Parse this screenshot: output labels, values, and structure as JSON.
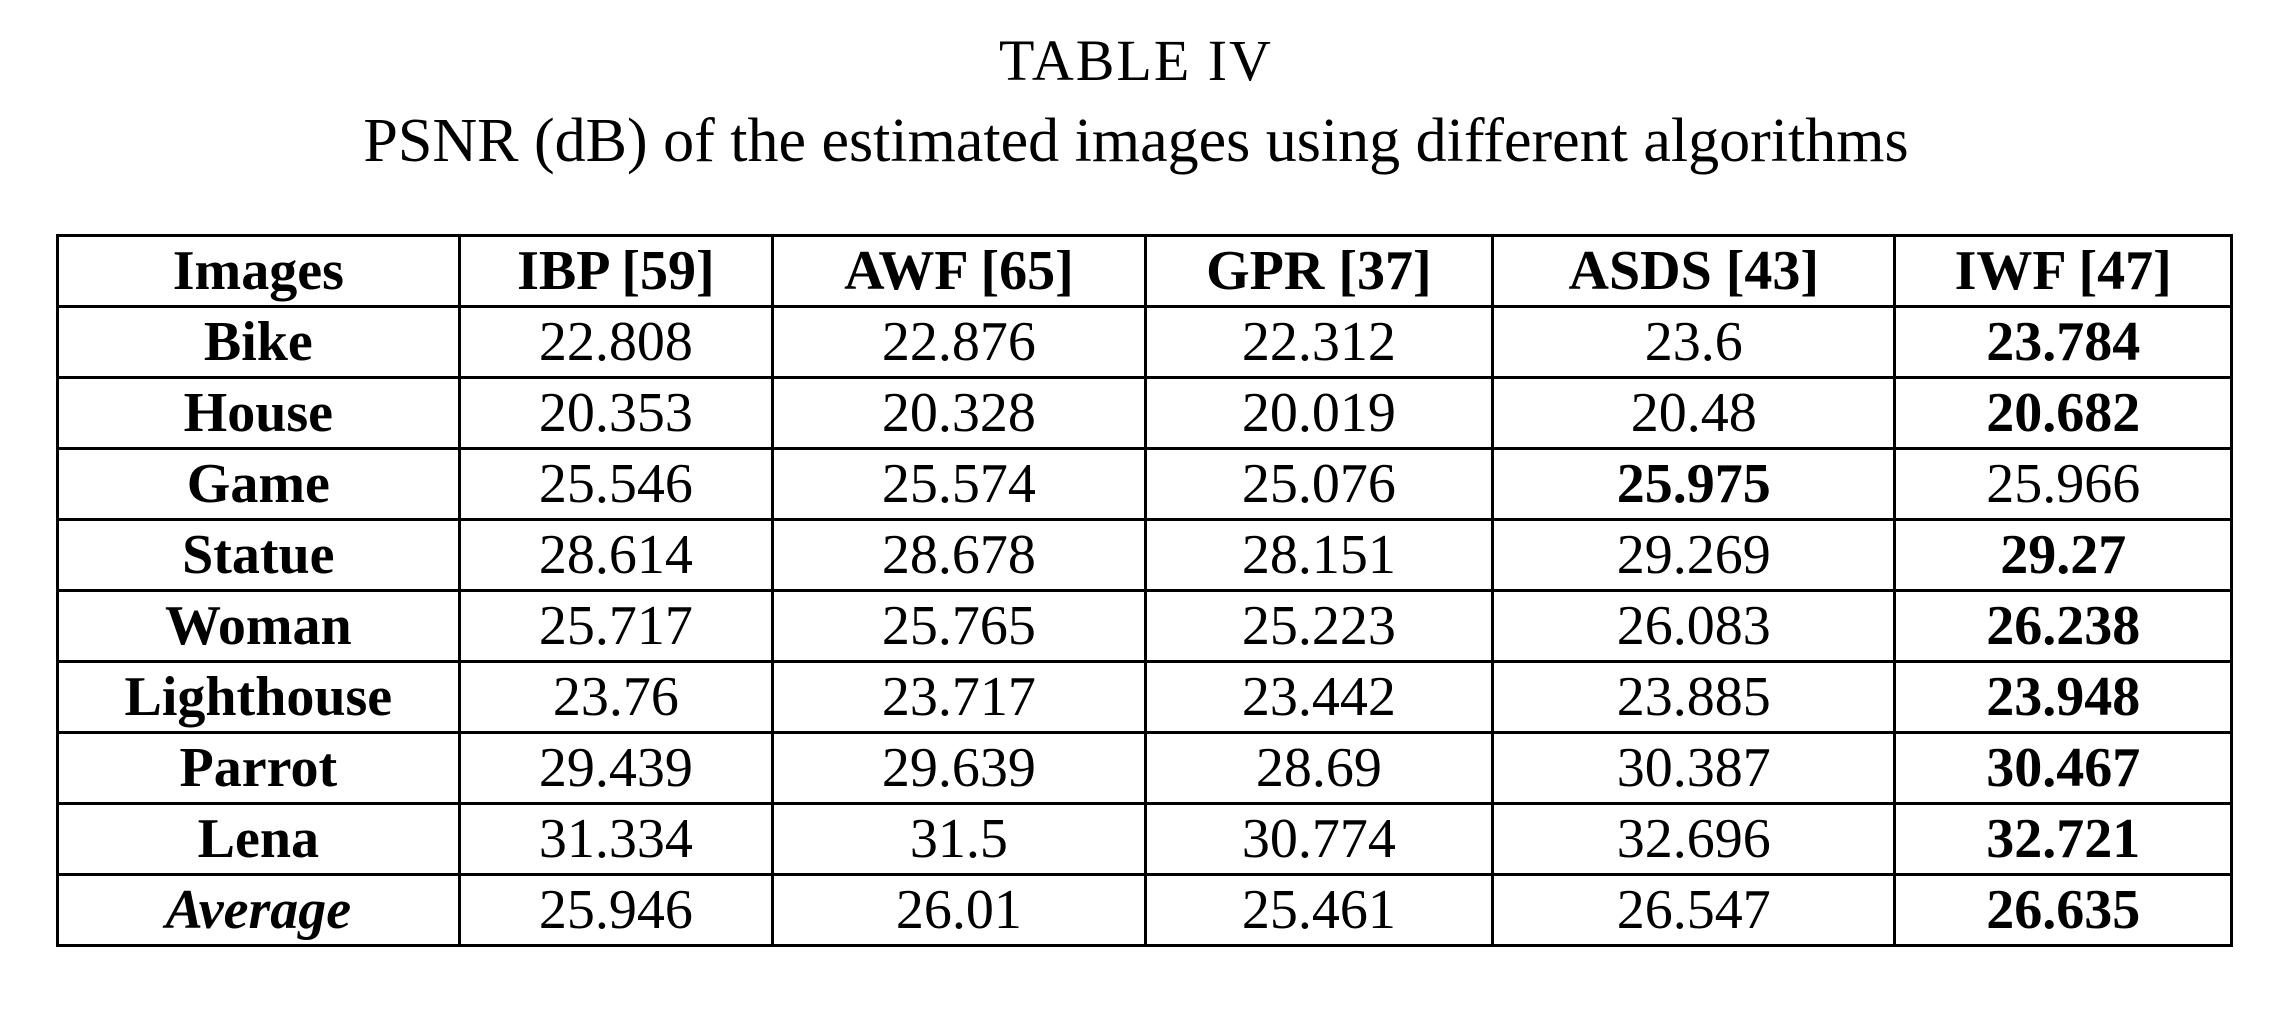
{
  "header": {
    "title": "TABLE IV",
    "subtitle": "PSNR (dB) of the estimated images using different algorithms"
  },
  "table": {
    "columns": [
      "Images",
      "IBP [59]",
      "AWF [65]",
      "GPR [37]",
      "ASDS [43]",
      "IWF [47]"
    ],
    "rows": [
      {
        "label": "Bike",
        "values": [
          22.808,
          22.876,
          22.312,
          23.6,
          23.784
        ],
        "best": 4
      },
      {
        "label": "House",
        "values": [
          20.353,
          20.328,
          20.019,
          20.48,
          20.682
        ],
        "best": 4
      },
      {
        "label": "Game",
        "values": [
          25.546,
          25.574,
          25.076,
          25.975,
          25.966
        ],
        "best": 3
      },
      {
        "label": "Statue",
        "values": [
          28.614,
          28.678,
          28.151,
          29.269,
          29.27
        ],
        "best": 4
      },
      {
        "label": "Woman",
        "values": [
          25.717,
          25.765,
          25.223,
          26.083,
          26.238
        ],
        "best": 4
      },
      {
        "label": "Lighthouse",
        "values": [
          23.76,
          23.717,
          23.442,
          23.885,
          23.948
        ],
        "best": 4
      },
      {
        "label": "Parrot",
        "values": [
          29.439,
          29.639,
          28.69,
          30.387,
          30.467
        ],
        "best": 4
      },
      {
        "label": "Lena",
        "values": [
          31.334,
          31.5,
          30.774,
          32.696,
          32.721
        ],
        "best": 4
      },
      {
        "label": "Average",
        "values": [
          25.946,
          26.01,
          25.461,
          26.547,
          26.635
        ],
        "best": 4
      }
    ]
  }
}
